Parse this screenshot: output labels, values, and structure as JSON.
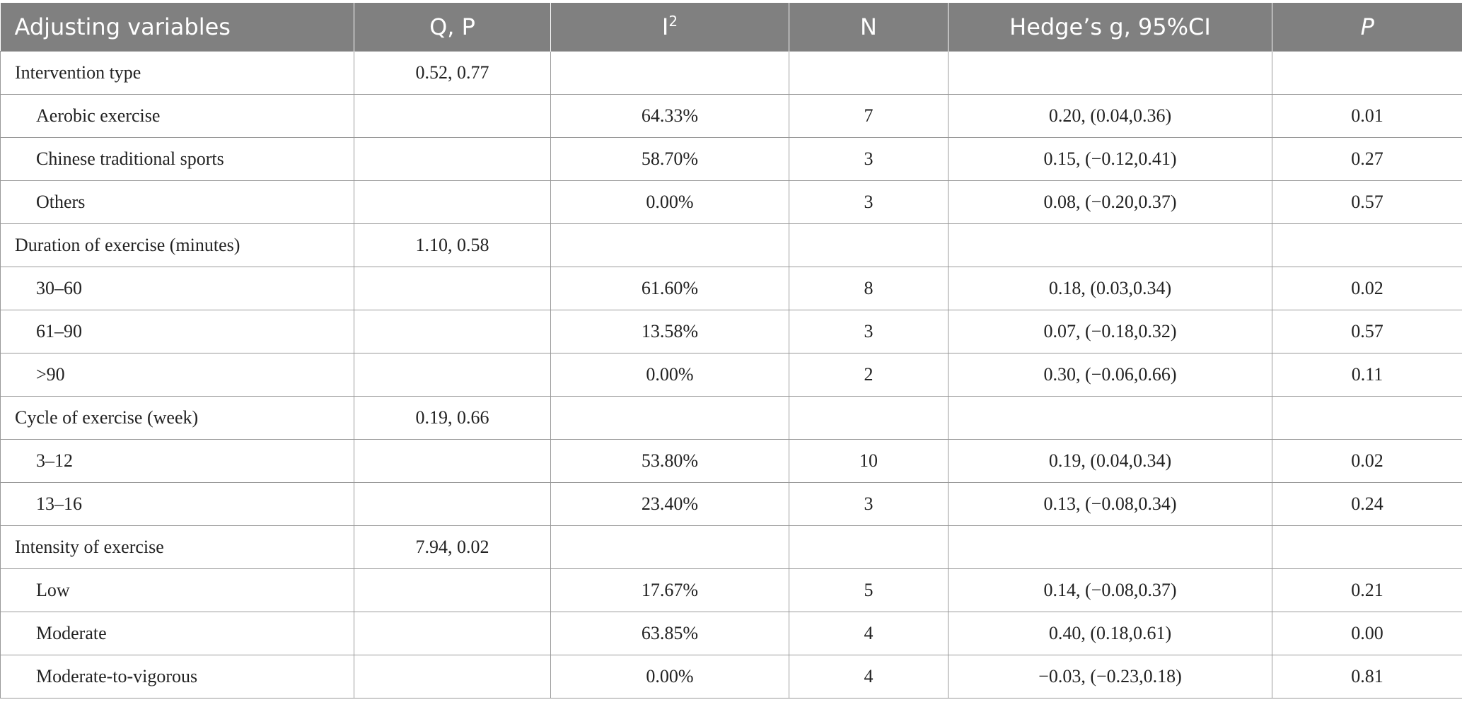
{
  "table": {
    "headers": [
      {
        "text": "Adjusting variables",
        "sup": ""
      },
      {
        "text": "Q, P",
        "sup": ""
      },
      {
        "text": "I",
        "sup": "2"
      },
      {
        "text": "N",
        "sup": ""
      },
      {
        "text": "Hedge’s g, 95%CI",
        "sup": ""
      },
      {
        "text": "P",
        "sup": ""
      }
    ],
    "rows": [
      {
        "kind": "group",
        "cells": [
          "Intervention type",
          "0.52, 0.77",
          "",
          "",
          "",
          ""
        ]
      },
      {
        "kind": "sub",
        "cells": [
          "Aerobic exercise",
          "",
          "64.33%",
          "7",
          "0.20, (0.04,0.36)",
          "0.01"
        ]
      },
      {
        "kind": "sub",
        "cells": [
          "Chinese traditional sports",
          "",
          "58.70%",
          "3",
          "0.15, (−0.12,0.41)",
          "0.27"
        ]
      },
      {
        "kind": "sub",
        "cells": [
          "Others",
          "",
          "0.00%",
          "3",
          "0.08, (−0.20,0.37)",
          "0.57"
        ]
      },
      {
        "kind": "group",
        "cells": [
          "Duration of exercise (minutes)",
          "1.10, 0.58",
          "",
          "",
          "",
          ""
        ]
      },
      {
        "kind": "sub",
        "cells": [
          "30–60",
          "",
          "61.60%",
          "8",
          "0.18, (0.03,0.34)",
          "0.02"
        ]
      },
      {
        "kind": "sub",
        "cells": [
          "61–90",
          "",
          "13.58%",
          "3",
          "0.07, (−0.18,0.32)",
          "0.57"
        ]
      },
      {
        "kind": "sub",
        "cells": [
          ">90",
          "",
          "0.00%",
          "2",
          "0.30, (−0.06,0.66)",
          "0.11"
        ]
      },
      {
        "kind": "group",
        "cells": [
          "Cycle of exercise (week)",
          "0.19, 0.66",
          "",
          "",
          "",
          ""
        ]
      },
      {
        "kind": "sub",
        "cells": [
          "3–12",
          "",
          "53.80%",
          "10",
          "0.19, (0.04,0.34)",
          "0.02"
        ]
      },
      {
        "kind": "sub",
        "cells": [
          "13–16",
          "",
          "23.40%",
          "3",
          "0.13, (−0.08,0.34)",
          "0.24"
        ]
      },
      {
        "kind": "group",
        "cells": [
          "Intensity of exercise",
          "7.94, 0.02",
          "",
          "",
          "",
          ""
        ]
      },
      {
        "kind": "sub",
        "cells": [
          "Low",
          "",
          "17.67%",
          "5",
          "0.14, (−0.08,0.37)",
          "0.21"
        ]
      },
      {
        "kind": "sub",
        "cells": [
          "Moderate",
          "",
          "63.85%",
          "4",
          "0.40, (0.18,0.61)",
          "0.00"
        ]
      },
      {
        "kind": "sub",
        "cells": [
          "Moderate-to-vigorous",
          "",
          "0.00%",
          "4",
          "−0.03, (−0.23,0.18)",
          "0.81"
        ]
      }
    ]
  },
  "colors": {
    "header_bg": "#808080",
    "header_text": "#ffffff",
    "grid_line": "#999999"
  }
}
